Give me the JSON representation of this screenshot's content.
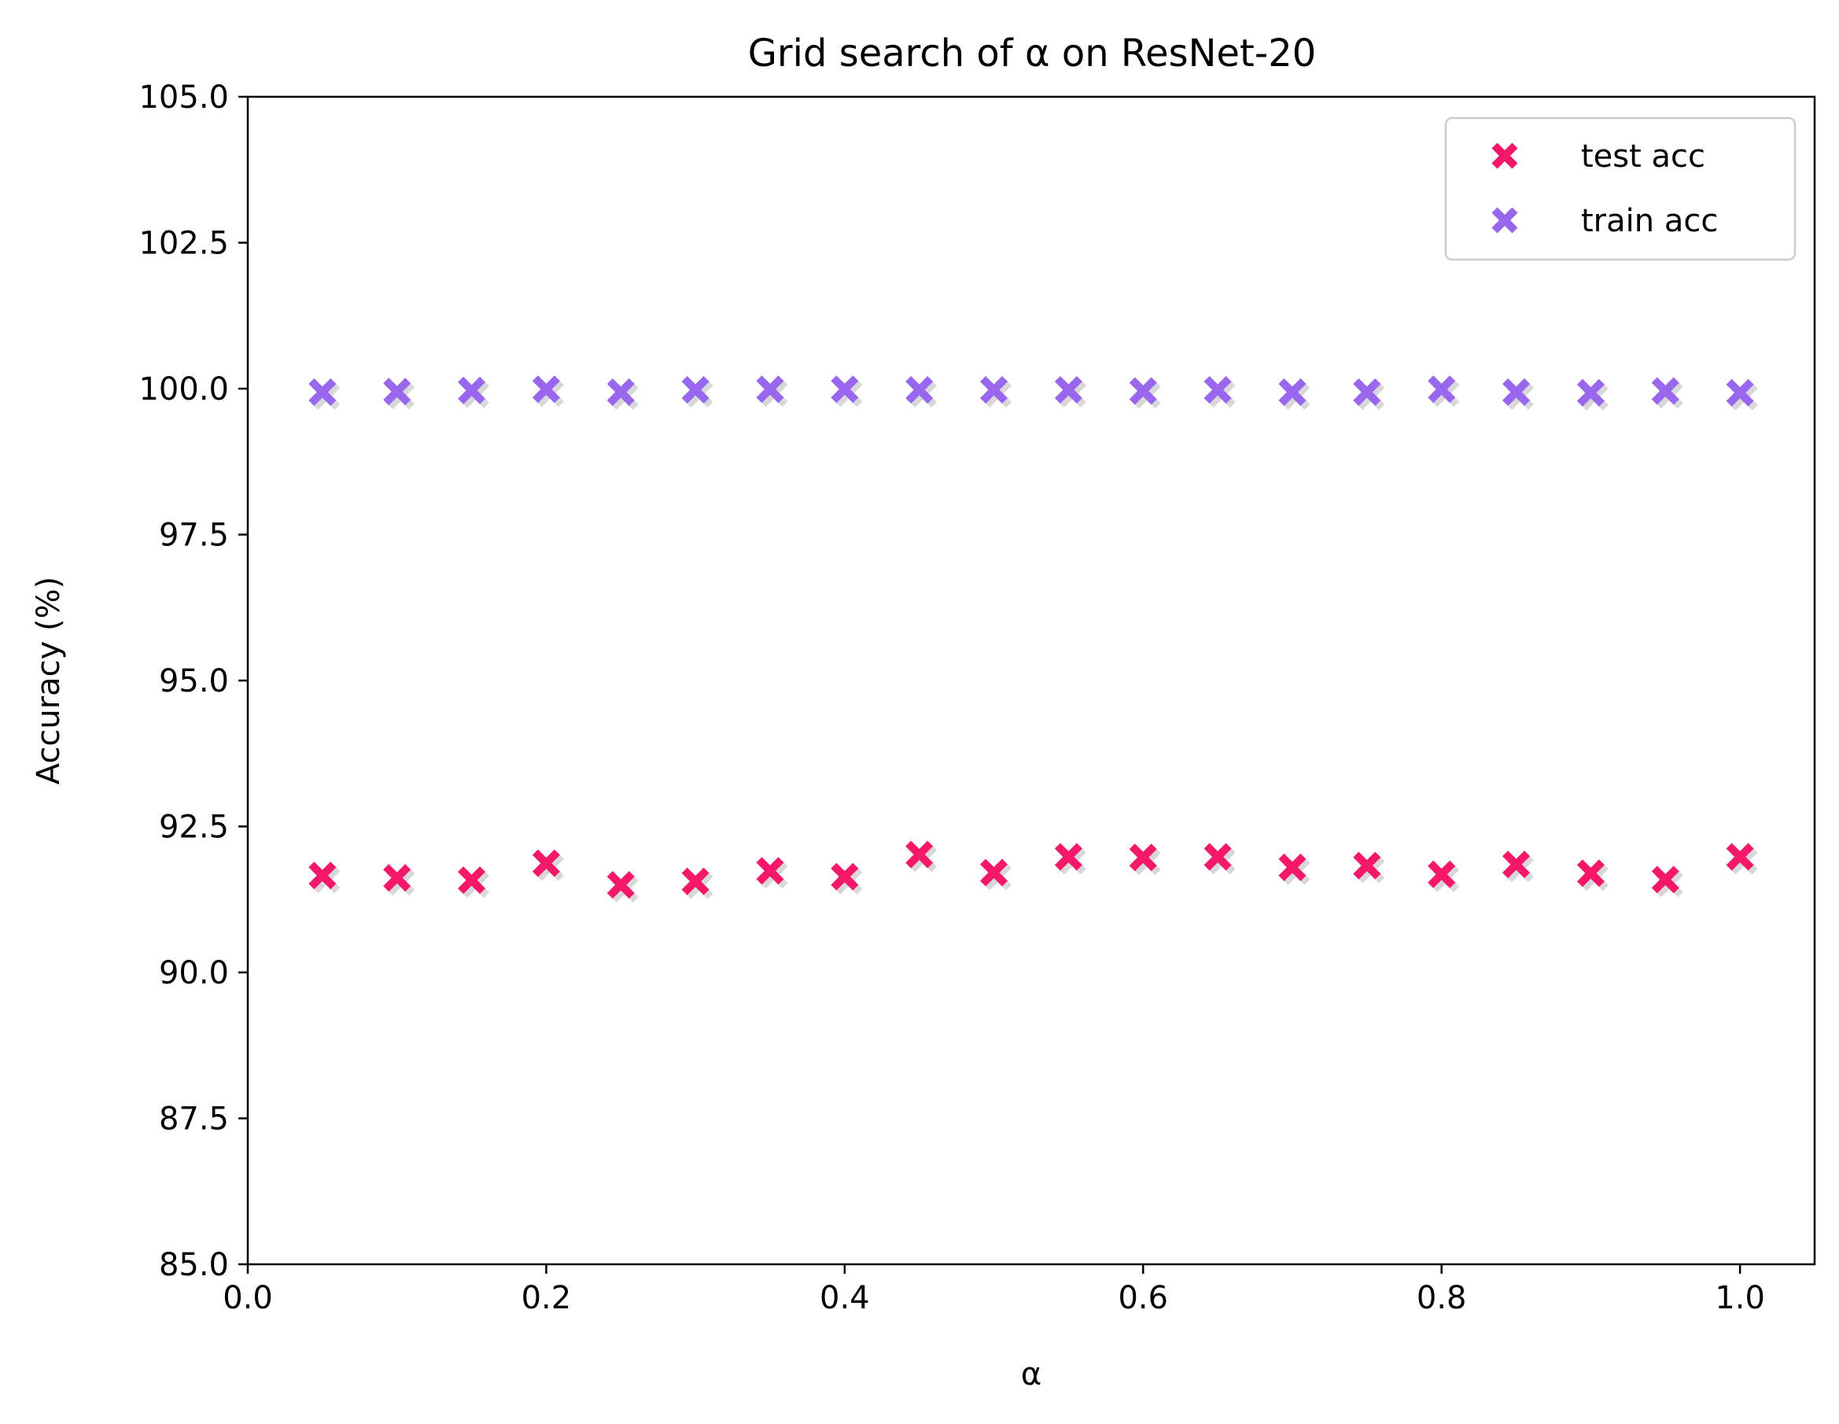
{
  "chart_data": {
    "type": "scatter",
    "title": "Grid search of α on ResNet-20",
    "xlabel": "α",
    "ylabel": "Accuracy (%)",
    "xlim": [
      0.0,
      1.05
    ],
    "ylim": [
      85.0,
      105.0
    ],
    "x_ticks": [
      "0.0",
      "0.2",
      "0.4",
      "0.6",
      "0.8",
      "1.0"
    ],
    "y_ticks": [
      "85.0",
      "87.5",
      "90.0",
      "92.5",
      "95.0",
      "97.5",
      "100.0",
      "102.5",
      "105.0"
    ],
    "grid": false,
    "legend_position": "top-right",
    "marker": "X",
    "x": [
      0.05,
      0.1,
      0.15,
      0.2,
      0.25,
      0.3,
      0.35,
      0.4,
      0.45,
      0.5,
      0.55,
      0.6,
      0.65,
      0.7,
      0.75,
      0.8,
      0.85,
      0.9,
      0.95,
      1.0
    ],
    "series": [
      {
        "name": "test acc",
        "color": "#f5186a",
        "values": [
          91.66,
          91.62,
          91.58,
          91.87,
          91.5,
          91.56,
          91.74,
          91.64,
          92.02,
          91.71,
          91.98,
          91.97,
          91.98,
          91.8,
          91.83,
          91.68,
          91.85,
          91.7,
          91.59,
          91.98
        ]
      },
      {
        "name": "train acc",
        "color": "#9966ee",
        "values": [
          99.94,
          99.95,
          99.97,
          99.99,
          99.94,
          99.98,
          99.99,
          99.99,
          99.98,
          99.98,
          99.98,
          99.96,
          99.98,
          99.94,
          99.94,
          99.99,
          99.94,
          99.93,
          99.96,
          99.93
        ]
      }
    ],
    "shadow_color": "#d8d8d8"
  }
}
